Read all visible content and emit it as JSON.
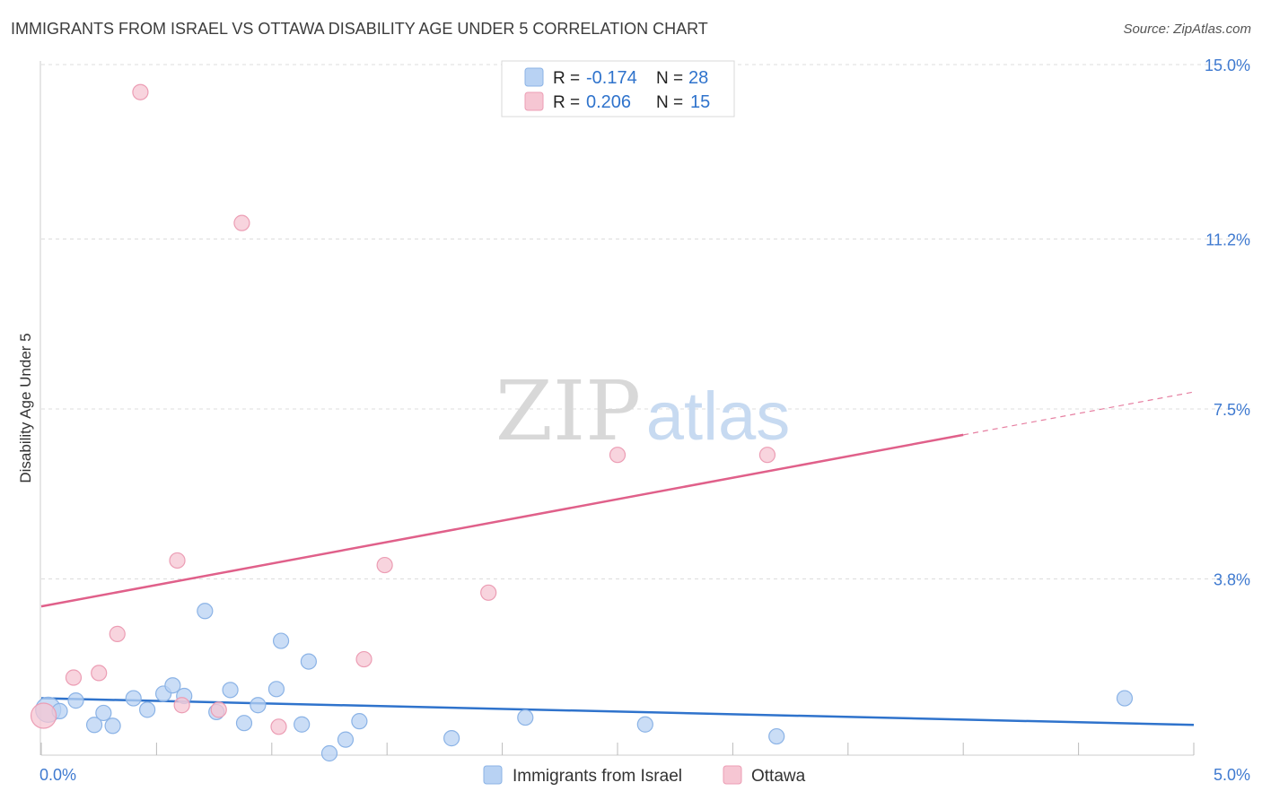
{
  "title": "IMMIGRANTS FROM ISRAEL VS OTTAWA DISABILITY AGE UNDER 5 CORRELATION CHART",
  "source": "Source: ZipAtlas.com",
  "watermark": {
    "zip": "ZIP",
    "atlas": "atlas"
  },
  "colors": {
    "blue_fill": "#b8d2f3",
    "blue_stroke": "#8bb3e6",
    "blue_line": "#2f73cc",
    "pink_fill": "#f6c6d3",
    "pink_stroke": "#ec9db4",
    "pink_line": "#e0608a",
    "tick_label": "#3f7ad0",
    "grid": "#dcdcdc"
  },
  "legend": {
    "rows": [
      {
        "r_label": "R =",
        "r_value": "-0.174",
        "n_label": "N =",
        "n_value": "28"
      },
      {
        "r_label": "R =",
        "r_value": "0.206",
        "n_label": "N =",
        "n_value": "15"
      }
    ]
  },
  "chart_data": {
    "type": "scatter",
    "title": "IMMIGRANTS FROM ISRAEL VS OTTAWA DISABILITY AGE UNDER 5 CORRELATION CHART",
    "xlabel": "",
    "ylabel": "Disability Age Under 5",
    "xlim": [
      0,
      5
    ],
    "ylim": [
      0,
      15.5
    ],
    "x_tick_labels": {
      "left": "0.0%",
      "right": "5.0%"
    },
    "y_ticks": [
      {
        "value": 3.8,
        "label": "3.8%"
      },
      {
        "value": 7.5,
        "label": "7.5%"
      },
      {
        "value": 11.2,
        "label": "11.2%"
      },
      {
        "value": 15.0,
        "label": "15.0%"
      }
    ],
    "series": [
      {
        "name": "Immigrants from Israel",
        "color": "blue",
        "points": [
          {
            "x": 0.03,
            "y": 0.95,
            "big": true
          },
          {
            "x": 0.08,
            "y": 0.92
          },
          {
            "x": 0.15,
            "y": 1.15
          },
          {
            "x": 0.23,
            "y": 0.62
          },
          {
            "x": 0.27,
            "y": 0.88
          },
          {
            "x": 0.31,
            "y": 0.6
          },
          {
            "x": 0.4,
            "y": 1.2
          },
          {
            "x": 0.46,
            "y": 0.95
          },
          {
            "x": 0.53,
            "y": 1.3
          },
          {
            "x": 0.57,
            "y": 1.48
          },
          {
            "x": 0.62,
            "y": 1.25
          },
          {
            "x": 0.71,
            "y": 3.1
          },
          {
            "x": 0.76,
            "y": 0.9
          },
          {
            "x": 0.82,
            "y": 1.38
          },
          {
            "x": 0.88,
            "y": 0.66
          },
          {
            "x": 0.94,
            "y": 1.05
          },
          {
            "x": 1.02,
            "y": 1.4
          },
          {
            "x": 1.04,
            "y": 2.45
          },
          {
            "x": 1.13,
            "y": 0.63
          },
          {
            "x": 1.16,
            "y": 2.0
          },
          {
            "x": 1.25,
            "y": 0.0
          },
          {
            "x": 1.32,
            "y": 0.3
          },
          {
            "x": 1.38,
            "y": 0.7
          },
          {
            "x": 1.78,
            "y": 0.33
          },
          {
            "x": 2.1,
            "y": 0.78
          },
          {
            "x": 2.62,
            "y": 0.63
          },
          {
            "x": 3.19,
            "y": 0.37
          },
          {
            "x": 4.7,
            "y": 1.2
          }
        ]
      },
      {
        "name": "Ottawa",
        "color": "pink",
        "points": [
          {
            "x": 0.01,
            "y": 0.82,
            "big": true
          },
          {
            "x": 0.14,
            "y": 1.65
          },
          {
            "x": 0.25,
            "y": 1.75
          },
          {
            "x": 0.33,
            "y": 2.6
          },
          {
            "x": 0.43,
            "y": 14.4
          },
          {
            "x": 0.59,
            "y": 4.2
          },
          {
            "x": 0.61,
            "y": 1.05
          },
          {
            "x": 0.77,
            "y": 0.95
          },
          {
            "x": 0.87,
            "y": 11.55
          },
          {
            "x": 1.03,
            "y": 0.58
          },
          {
            "x": 1.4,
            "y": 2.05
          },
          {
            "x": 1.49,
            "y": 4.1
          },
          {
            "x": 1.94,
            "y": 3.5
          },
          {
            "x": 2.5,
            "y": 6.5
          },
          {
            "x": 3.15,
            "y": 6.5
          }
        ]
      }
    ],
    "trendlines": [
      {
        "series": "Immigrants from Israel",
        "x1": 0,
        "y1": 1.2,
        "x2": 5,
        "y2": 0.62,
        "dashed_from": null
      },
      {
        "series": "Ottawa",
        "x1": 0,
        "y1": 3.2,
        "x2": 5,
        "y2": 7.87,
        "dashed_from": 4.0
      }
    ]
  },
  "bottom_legend": [
    {
      "label": "Immigrants from Israel",
      "color": "blue"
    },
    {
      "label": "Ottawa",
      "color": "pink"
    }
  ]
}
